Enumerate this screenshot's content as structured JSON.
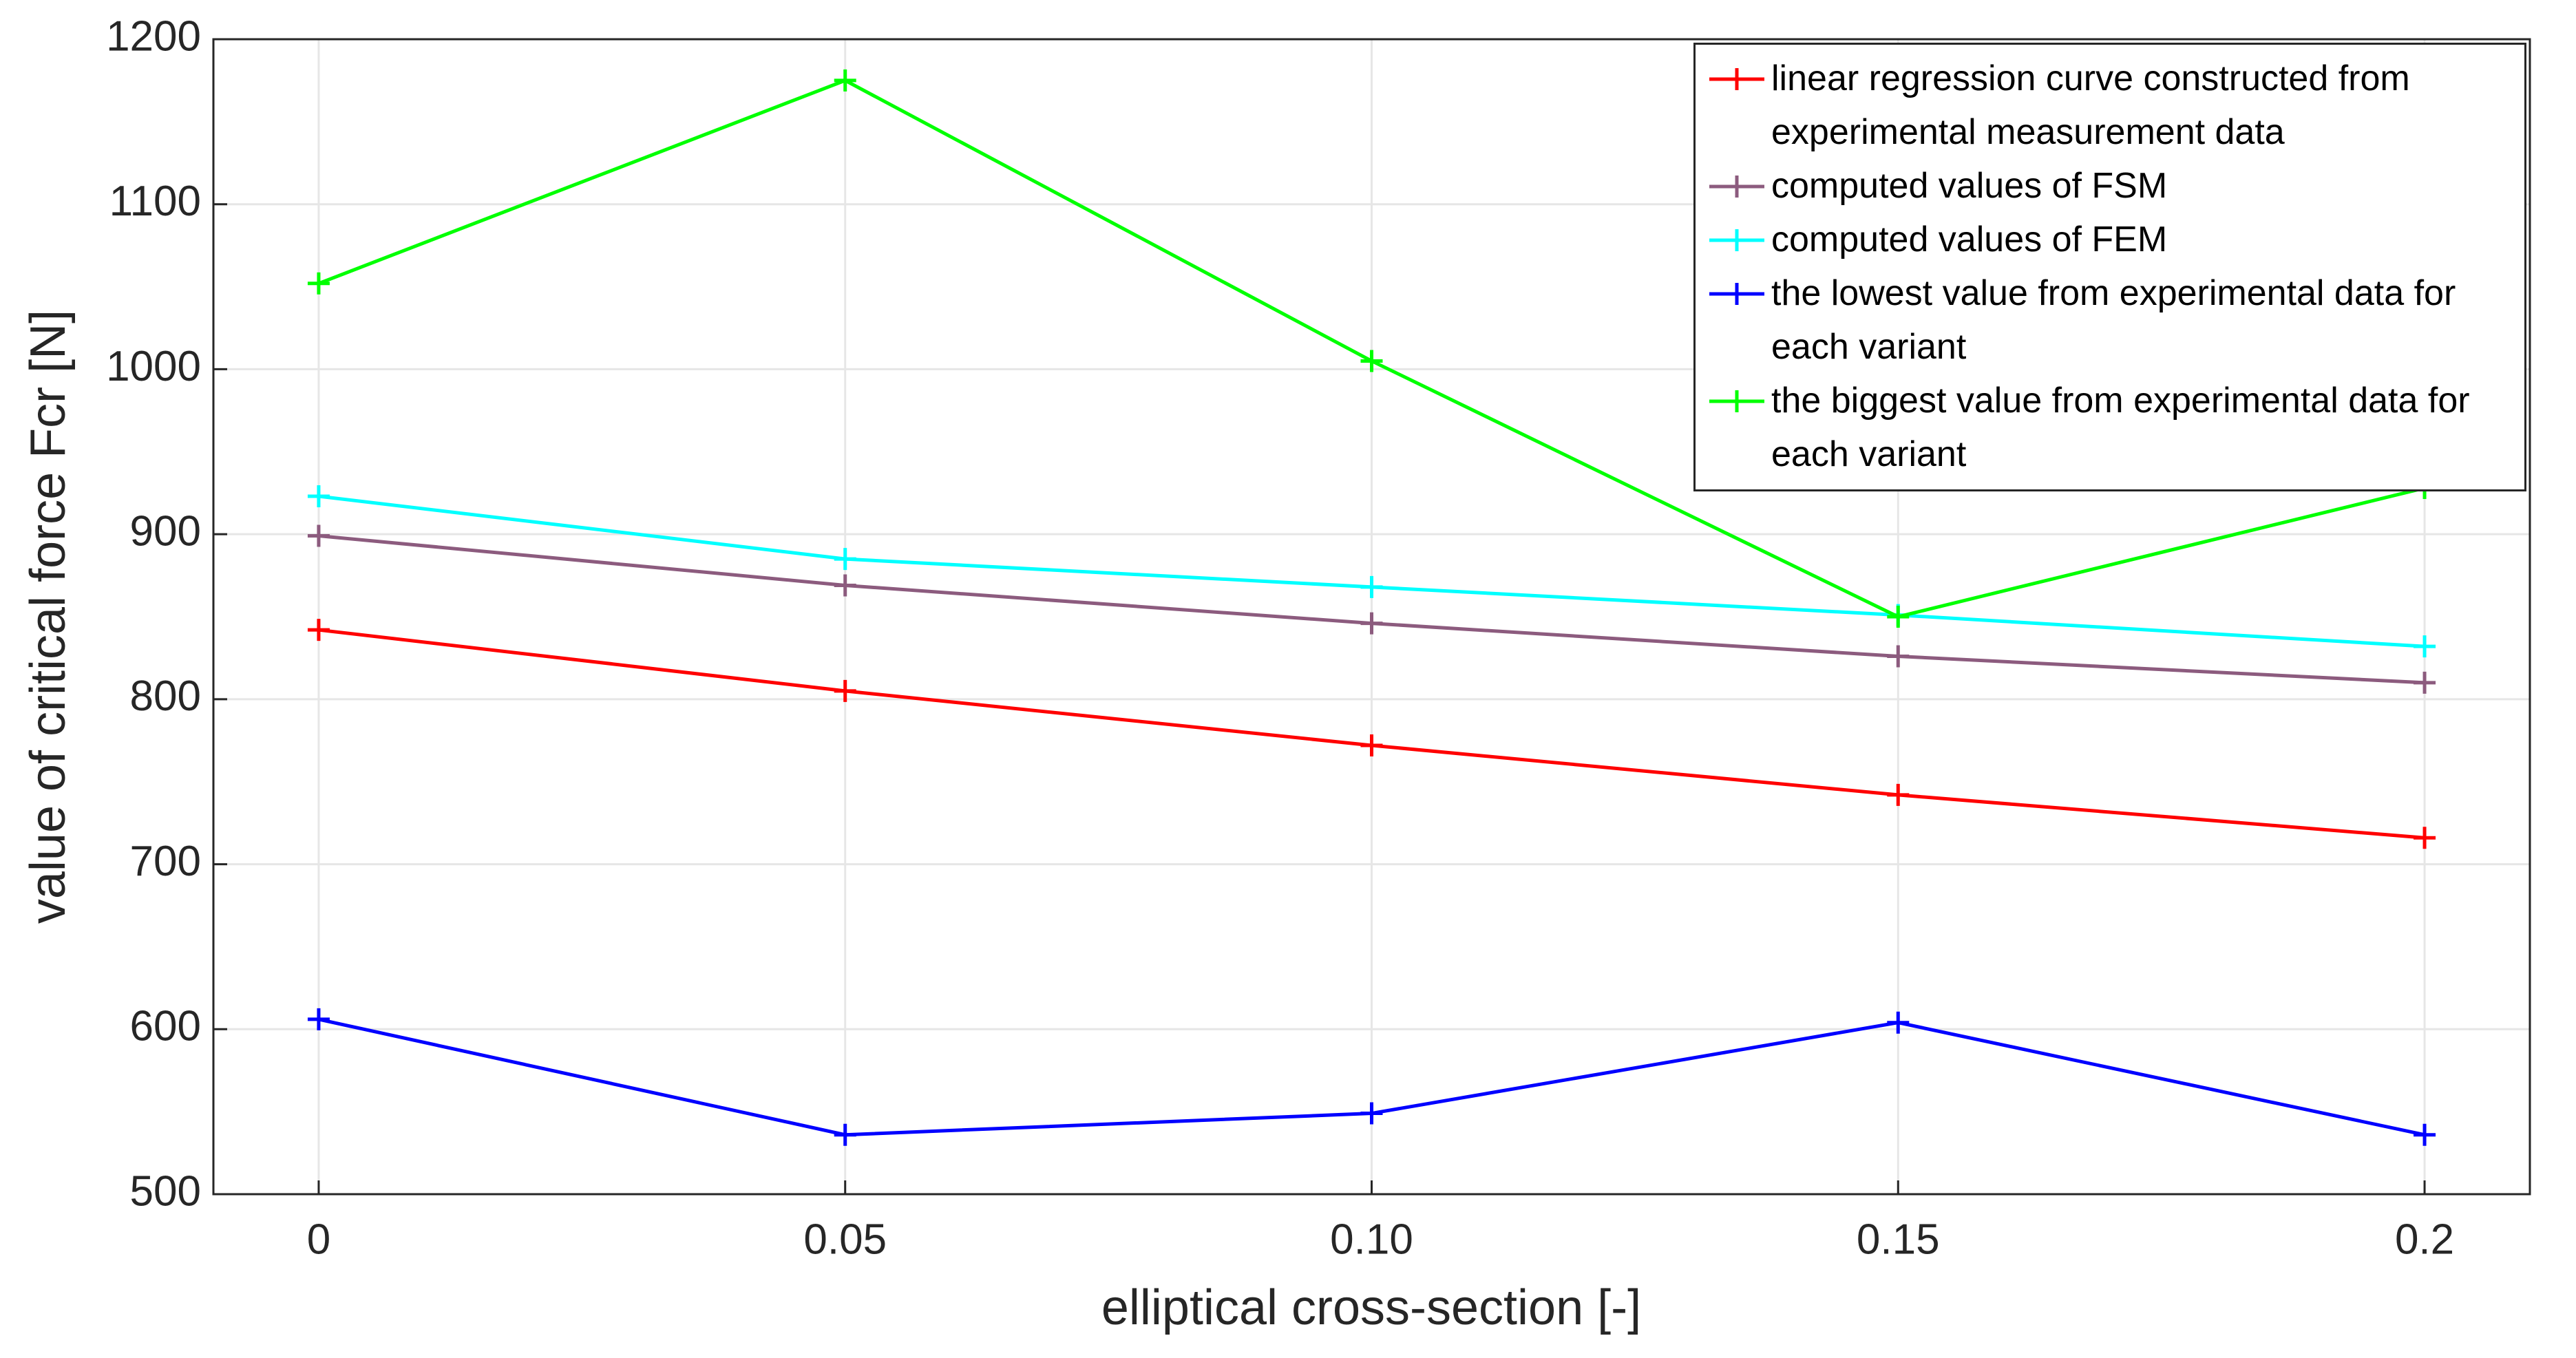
{
  "chart_data": {
    "type": "line",
    "x_label": "elliptical cross-section [-]",
    "y_label": "value of critical force Fcr [N]",
    "x": [
      0,
      0.05,
      0.1,
      0.15,
      0.2
    ],
    "xlim": [
      -0.01,
      0.21
    ],
    "xticks": [
      0,
      0.05,
      {
        "value": 0.1,
        "label": "0.10"
      },
      0.15,
      0.2
    ],
    "ylim": [
      500,
      1200
    ],
    "yticks": [
      500,
      600,
      700,
      800,
      900,
      1000,
      1100,
      1200
    ],
    "grid": true,
    "legend": "northeast",
    "series": [
      {
        "name": "linear regression curve constructed from experimental measurement data",
        "color": "#ff0000",
        "values": [
          842,
          805,
          772,
          742,
          716
        ]
      },
      {
        "name": "computed values of FSM",
        "color": "#8c5b7e",
        "values": [
          899,
          869,
          846,
          826,
          810
        ]
      },
      {
        "name": "computed values of FEM",
        "color": "#00ffff",
        "values": [
          923,
          885,
          868,
          851,
          832
        ]
      },
      {
        "name": "the lowest value from experimental data for each variant",
        "color": "#0000ff",
        "values": [
          606,
          536,
          549,
          604,
          536
        ]
      },
      {
        "name": "the biggest value from experimental data for each variant",
        "color": "#00ff00",
        "values": [
          1052,
          1175,
          1005,
          850,
          928
        ]
      }
    ]
  }
}
